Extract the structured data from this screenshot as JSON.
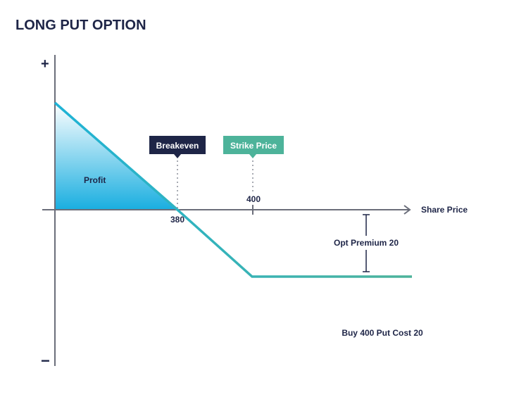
{
  "title": "LONG PUT OPTION",
  "axis": {
    "plus": "+",
    "minus": "−",
    "x_label": "Share Price"
  },
  "labels": {
    "profit": "Profit",
    "breakeven": "Breakeven",
    "strike": "Strike Price",
    "breakeven_value": "380",
    "strike_value": "400",
    "premium": "Opt Premium 20",
    "caption": "Buy 400 Put Cost 20"
  },
  "colors": {
    "text": "#1e2547",
    "axis": "#6b6e7a",
    "payoff_line": "#1fb3d6",
    "payoff_flat": "#3fb8a4",
    "profit_fill": "#19aee0",
    "breakeven_box": "#1e2547",
    "strike_box": "#4db39a"
  }
}
